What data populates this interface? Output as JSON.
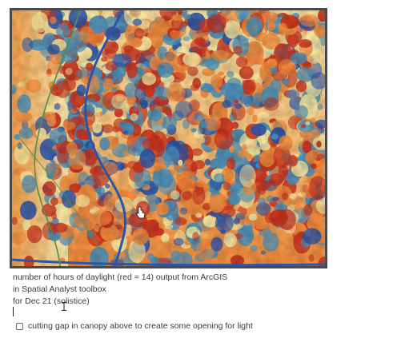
{
  "map": {
    "colors": {
      "red": "#c8321e",
      "orange": "#f08a3c",
      "yellow": "#f6e7a0",
      "teal": "#4a8fb8",
      "blue": "#2c55a8",
      "frame": "#4a4a4a",
      "trail_green": "#4f8f55"
    }
  },
  "caption": {
    "line1": "number of hours of daylight (red = 14) output from ArcGIS",
    "line2": "in Spatial Analyst toolbox",
    "line3": "for Dec 21 (solistice)"
  },
  "task": {
    "label": "cutting gap in canopy above to create some opening for light",
    "checked": false
  }
}
